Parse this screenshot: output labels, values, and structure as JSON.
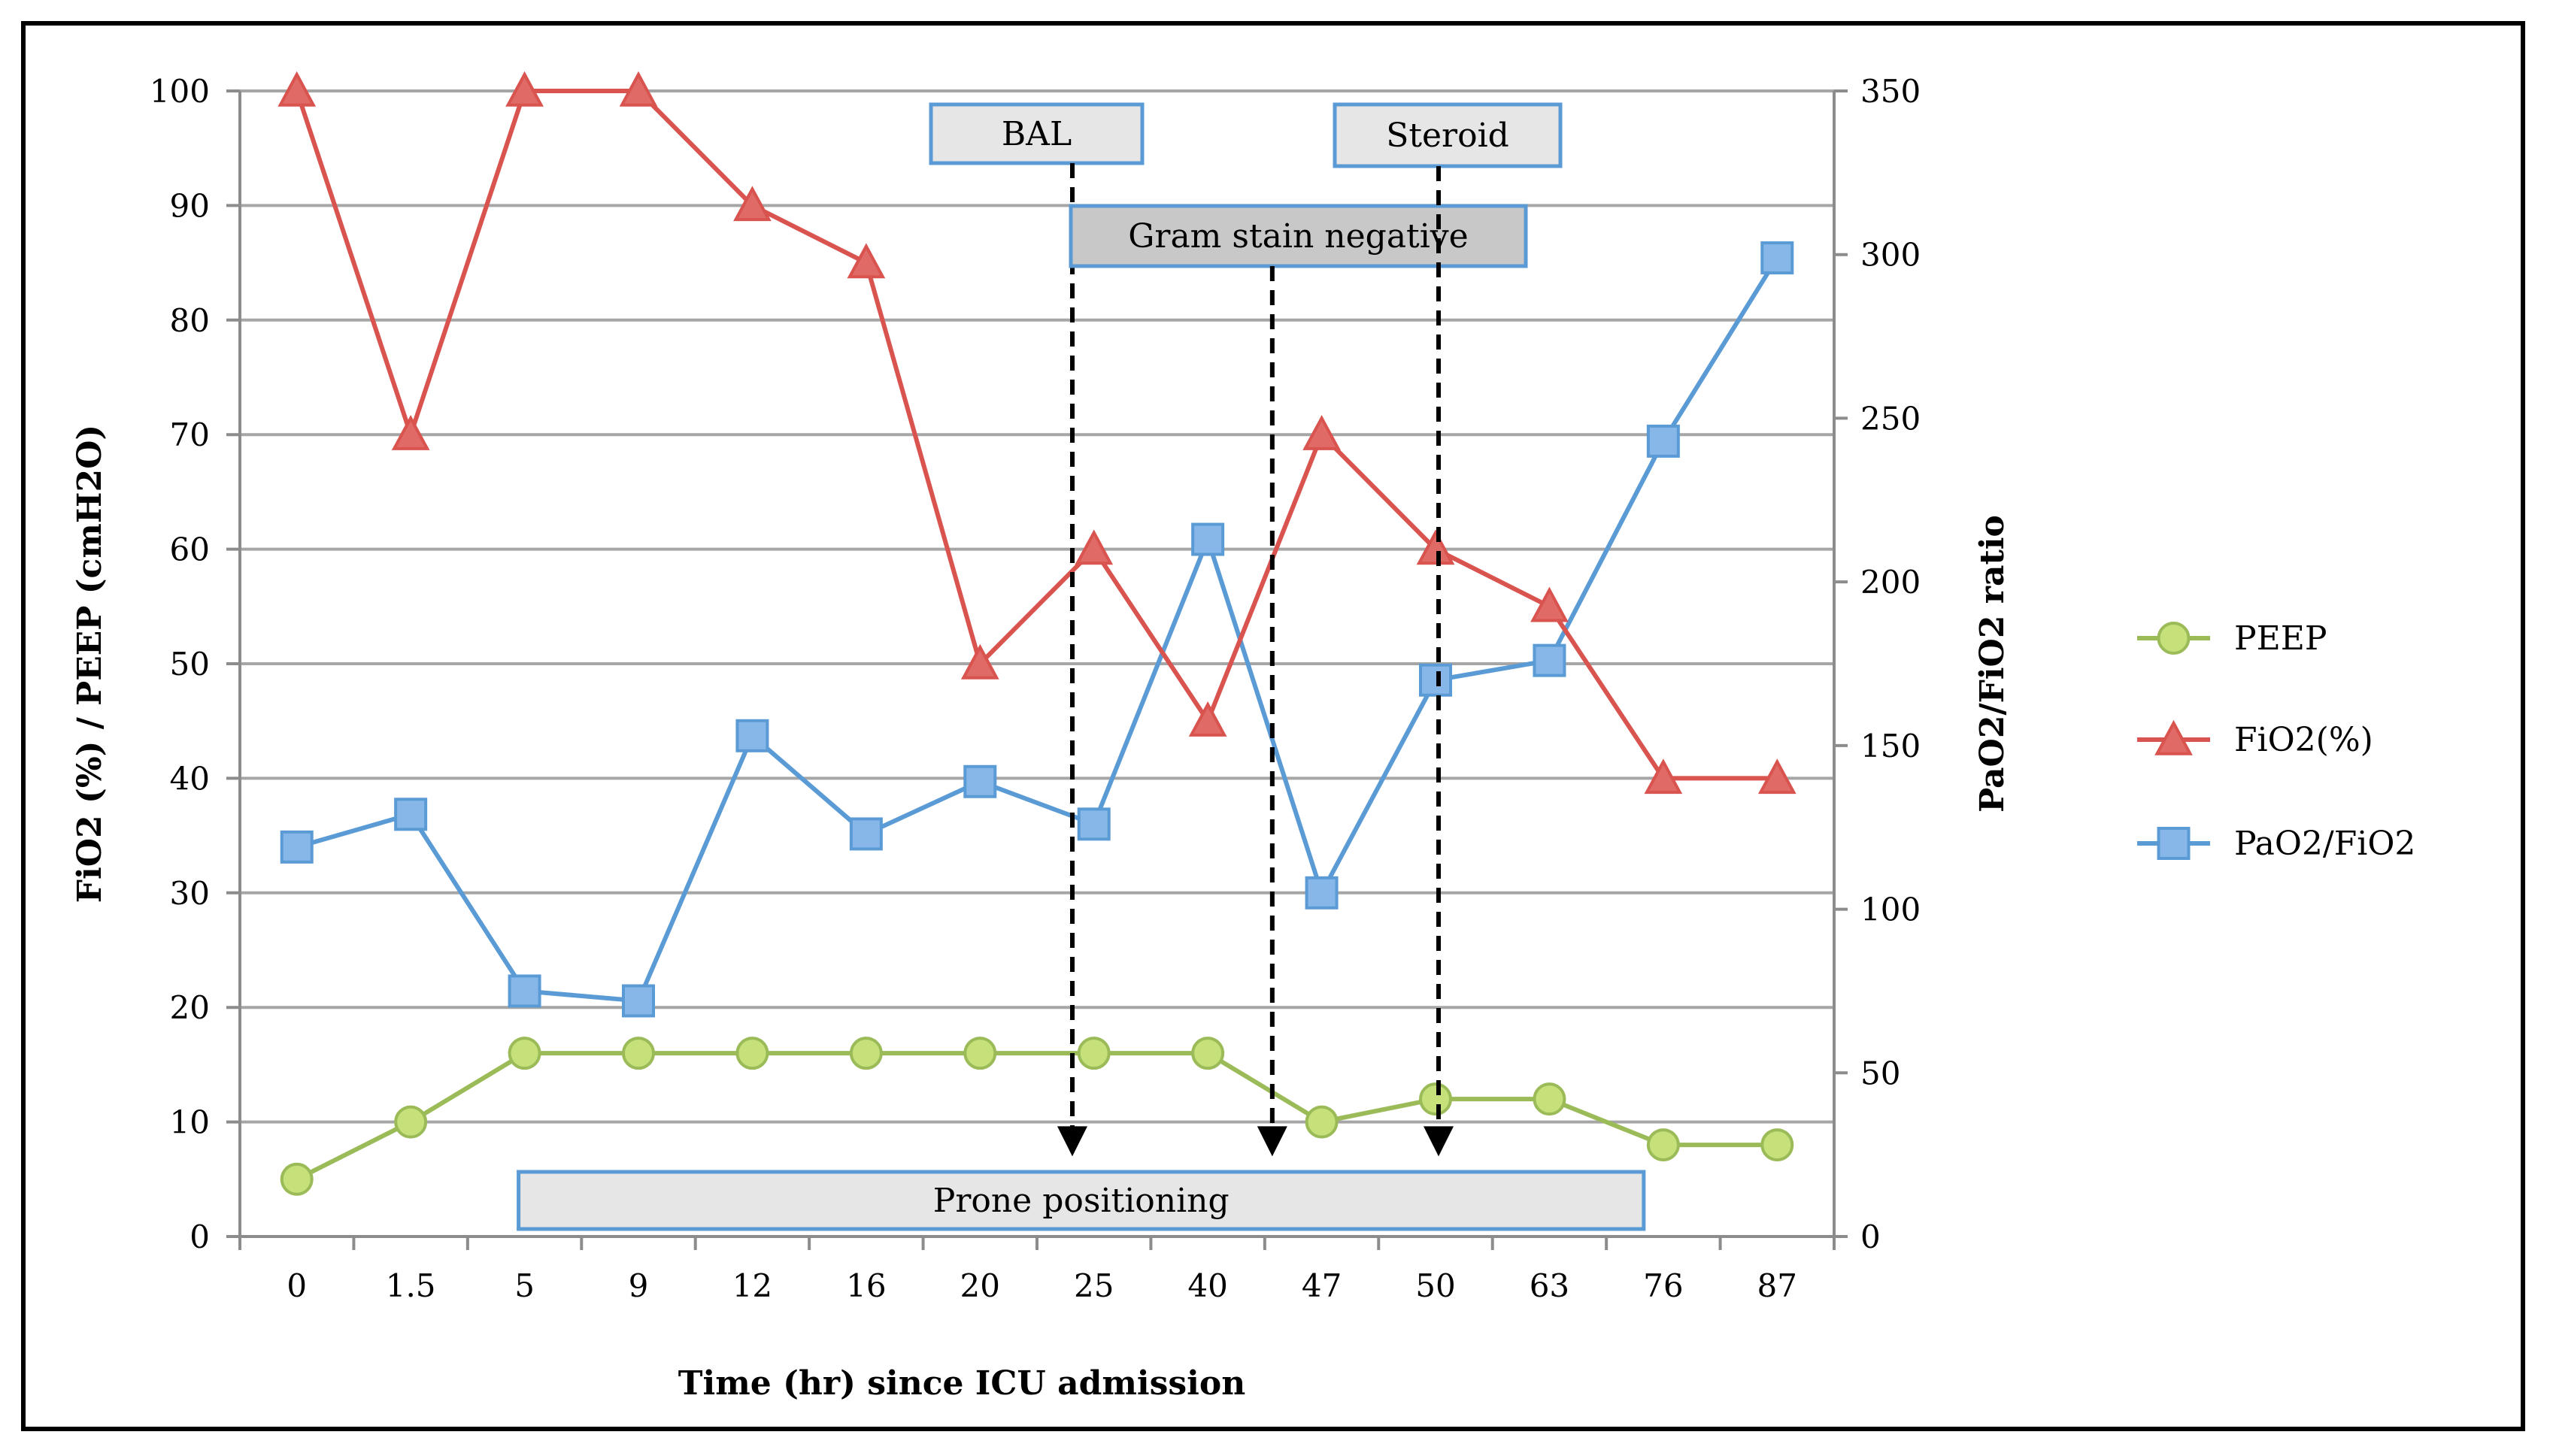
{
  "chart_data": {
    "type": "line",
    "title": "",
    "categories": [
      "0",
      "1.5",
      "5",
      "9",
      "12",
      "16",
      "20",
      "25",
      "40",
      "47",
      "50",
      "63",
      "76",
      "87"
    ],
    "xlabel": "Time (hr) since ICU admission",
    "ylabel_left": "FiO2 (%) / PEEP (cmH2O)",
    "ylabel_right": "PaO2/FiO2 ratio",
    "ylim_left": [
      0,
      100
    ],
    "ylim_right": [
      0,
      350
    ],
    "yticks_left": [
      "0",
      "10",
      "20",
      "30",
      "40",
      "50",
      "60",
      "70",
      "80",
      "90",
      "100"
    ],
    "yticks_right": [
      "0",
      "50",
      "100",
      "150",
      "200",
      "250",
      "300",
      "350"
    ],
    "grid": true,
    "legend_position": "right",
    "series": [
      {
        "name": "PEEP",
        "axis": "left",
        "marker": "circle",
        "color": "#9bbb59",
        "marker_fill": "#c6e07a",
        "values": [
          5,
          10,
          16,
          16,
          16,
          16,
          16,
          16,
          16,
          10,
          12,
          12,
          8,
          8
        ]
      },
      {
        "name": "FiO2(%)",
        "axis": "left",
        "marker": "triangle",
        "color": "#d9534f",
        "marker_fill": "#e06a66",
        "values": [
          100,
          70,
          100,
          100,
          90,
          85,
          50,
          60,
          45,
          70,
          60,
          55,
          40,
          40
        ]
      },
      {
        "name": "PaO2/FiO2",
        "axis": "right",
        "marker": "square",
        "color": "#5b9bd5",
        "marker_fill": "#86b7e8",
        "values": [
          119,
          129,
          75,
          72,
          153,
          123,
          139,
          126,
          213,
          105,
          170,
          176,
          243,
          299
        ]
      }
    ],
    "annotations": [
      {
        "label": "BAL",
        "box_style": "outline"
      },
      {
        "label": "Gram stain negative",
        "box_style": "filled"
      },
      {
        "label": "Steroid",
        "box_style": "outline"
      },
      {
        "label": "Prone positioning",
        "box_style": "outline"
      }
    ],
    "arrows": [
      {
        "from": "BAL",
        "x_between": [
          "20",
          "25"
        ],
        "to_value_left": 7
      },
      {
        "from": "Gram stain negative",
        "x_between": [
          "40",
          "47"
        ],
        "to_value_left": 7
      },
      {
        "from": "Steroid",
        "x_at": "50",
        "to_value_left": 7
      }
    ],
    "prone_positioning_range": [
      "5",
      "76"
    ]
  }
}
